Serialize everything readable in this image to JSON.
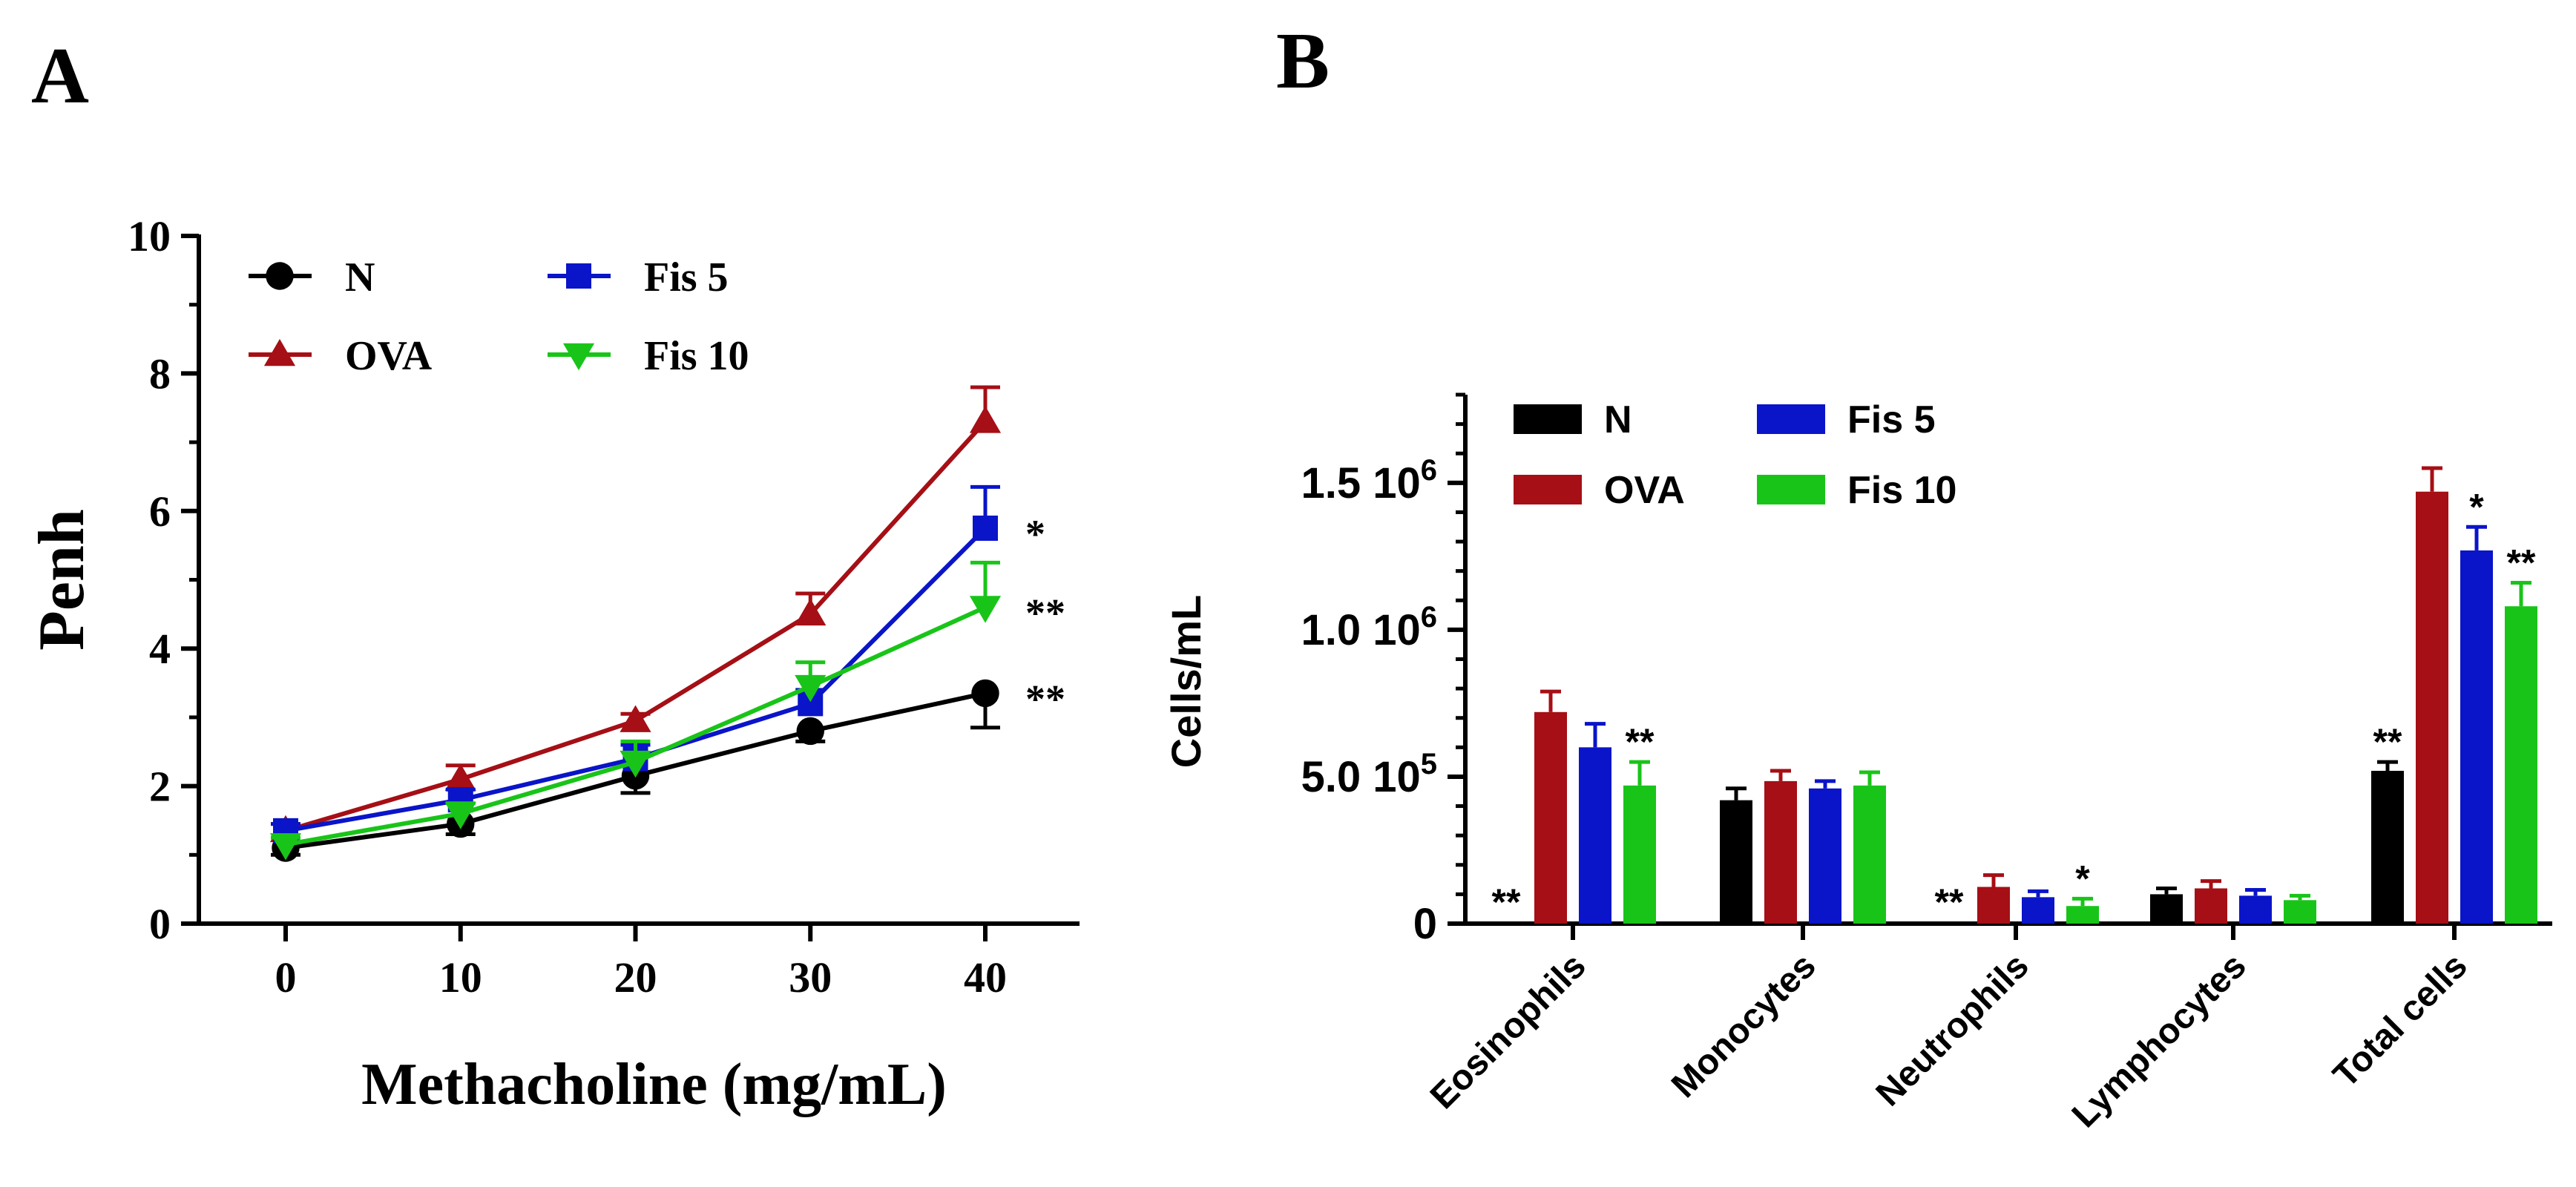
{
  "colors": {
    "N": "#000000",
    "OVA": "#a50f15",
    "Fis5": "#0a14c8",
    "Fis10": "#19c419"
  },
  "chart_data": [
    {
      "panel": "A",
      "type": "line",
      "ylabel": "Penh",
      "xlabel": "Methacholine (mg/mL)",
      "x": [
        0,
        10,
        20,
        30,
        40
      ],
      "x_ticks": [
        "0",
        "10",
        "20",
        "30",
        "40"
      ],
      "ylim": [
        0,
        10
      ],
      "y_ticks": [
        "0",
        "2",
        "4",
        "6",
        "8",
        "10"
      ],
      "series": [
        {
          "name": "N",
          "marker": "circle",
          "values": [
            1.1,
            1.45,
            2.15,
            2.8,
            3.35
          ],
          "errors": [
            0.1,
            0.15,
            0.25,
            0.15,
            0.5
          ],
          "error_dir": "down",
          "sig": "**"
        },
        {
          "name": "OVA",
          "marker": "triangle-up",
          "values": [
            1.35,
            2.1,
            2.95,
            4.5,
            7.3
          ],
          "errors": [
            0.1,
            0.2,
            0.1,
            0.3,
            0.5
          ],
          "error_dir": "up",
          "sig": ""
        },
        {
          "name": "Fis 5",
          "marker": "square",
          "values": [
            1.35,
            1.8,
            2.4,
            3.2,
            5.75
          ],
          "errors": [
            0.1,
            0.15,
            0.2,
            0.2,
            0.6
          ],
          "error_dir": "up",
          "sig": "*"
        },
        {
          "name": "Fis 10",
          "marker": "triangle-down",
          "values": [
            1.15,
            1.6,
            2.35,
            3.45,
            4.6
          ],
          "errors": [
            0.1,
            0.15,
            0.3,
            0.35,
            0.65
          ],
          "error_dir": "up",
          "sig": "**"
        }
      ],
      "legend": [
        "N",
        "OVA",
        "Fis 5",
        "Fis 10"
      ]
    },
    {
      "panel": "B",
      "type": "bar",
      "ylabel": "Cells/mL",
      "categories": [
        "Eosinophils",
        "Monocytes",
        "Neutrophils",
        "Lymphocytes",
        "Total cells"
      ],
      "ylim": [
        0,
        1800000
      ],
      "y_ticks": [
        {
          "value": 0,
          "mantissa": "0",
          "exp": ""
        },
        {
          "value": 500000,
          "mantissa": "5.0",
          "exp": "5"
        },
        {
          "value": 1000000,
          "mantissa": "1.0",
          "exp": "6"
        },
        {
          "value": 1500000,
          "mantissa": "1.5",
          "exp": "6"
        }
      ],
      "tick_base": "10",
      "series": [
        {
          "name": "N",
          "values": [
            5000,
            420000,
            5000,
            100000,
            520000
          ],
          "errors": [
            0,
            40000,
            0,
            20000,
            30000
          ],
          "sig": [
            "**",
            "",
            "**",
            "",
            "**"
          ]
        },
        {
          "name": "OVA",
          "values": [
            720000,
            485000,
            125000,
            120000,
            1470000
          ],
          "errors": [
            70000,
            35000,
            40000,
            25000,
            80000
          ],
          "sig": [
            "",
            "",
            "",
            "",
            ""
          ]
        },
        {
          "name": "Fis 5",
          "values": [
            600000,
            460000,
            90000,
            95000,
            1270000
          ],
          "errors": [
            80000,
            25000,
            20000,
            20000,
            80000
          ],
          "sig": [
            "",
            "",
            "",
            "",
            "*"
          ]
        },
        {
          "name": "Fis 10",
          "values": [
            470000,
            470000,
            60000,
            80000,
            1080000
          ],
          "errors": [
            80000,
            45000,
            25000,
            15000,
            80000
          ],
          "sig": [
            "**",
            "",
            "*",
            "",
            "**"
          ]
        }
      ],
      "legend": [
        "N",
        "OVA",
        "Fis 5",
        "Fis 10"
      ]
    }
  ]
}
